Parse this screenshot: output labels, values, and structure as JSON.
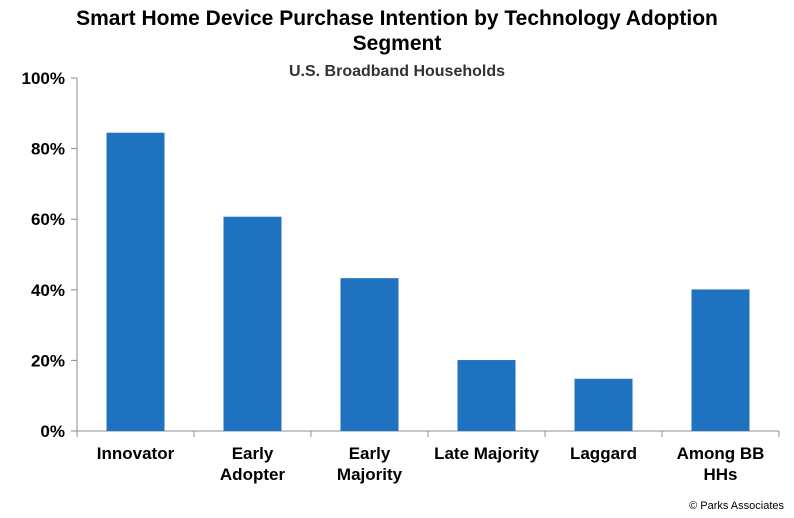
{
  "chart_data": {
    "type": "bar",
    "title_lines": [
      "Smart Home Device Purchase Intention by Technology Adoption",
      "Segment"
    ],
    "subtitle": "U.S. Broadband Households",
    "categories": [
      [
        "Innovator"
      ],
      [
        "Early",
        "Adopter"
      ],
      [
        "Early",
        "Majority"
      ],
      [
        "Late Majority"
      ],
      [
        "Laggard"
      ],
      [
        "Among BB",
        "HHs"
      ]
    ],
    "values": [
      84.5,
      60.7,
      43.3,
      20.1,
      14.8,
      40.1
    ],
    "ylim": [
      0,
      100
    ],
    "yticks": [
      0,
      20,
      40,
      60,
      80,
      100
    ],
    "ytick_labels": [
      "0%",
      "20%",
      "40%",
      "60%",
      "80%",
      "100%"
    ],
    "bar_color": "#1F72BF",
    "grid": false,
    "legend": false
  },
  "footer": {
    "copyright": "© Parks Associates"
  }
}
